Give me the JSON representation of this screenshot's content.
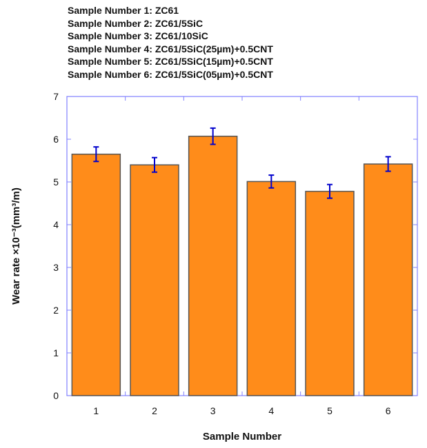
{
  "chart_data": {
    "type": "bar",
    "legend_notes": [
      "Sample Number 1: ZC61",
      "Sample Number 2: ZC61/5SiC",
      "Sample Number 3: ZC61/10SiC",
      "Sample Number 4: ZC61/5SiC(25µm)+0.5CNT",
      "Sample Number 5: ZC61/5SiC(15µm)+0.5CNT",
      "Sample Number 6: ZC61/5SiC(05µm)+0.5CNT"
    ],
    "categories": [
      "1",
      "2",
      "3",
      "4",
      "5",
      "6"
    ],
    "values": [
      5.65,
      5.4,
      6.07,
      5.01,
      4.78,
      5.42
    ],
    "errors": [
      0.17,
      0.17,
      0.19,
      0.15,
      0.16,
      0.17
    ],
    "xlabel": "Sample Number",
    "ylabel": "Wear rate ×10⁻³(mm³/m)",
    "ylim": [
      0,
      7
    ],
    "yticks": [
      "0",
      "1",
      "2",
      "3",
      "4",
      "5",
      "6",
      "7"
    ],
    "grid": false,
    "colors": {
      "bar": "#ff8c1a",
      "bar_edge": "#555555",
      "error": "#0000cc",
      "frame": "#8080ff"
    }
  }
}
